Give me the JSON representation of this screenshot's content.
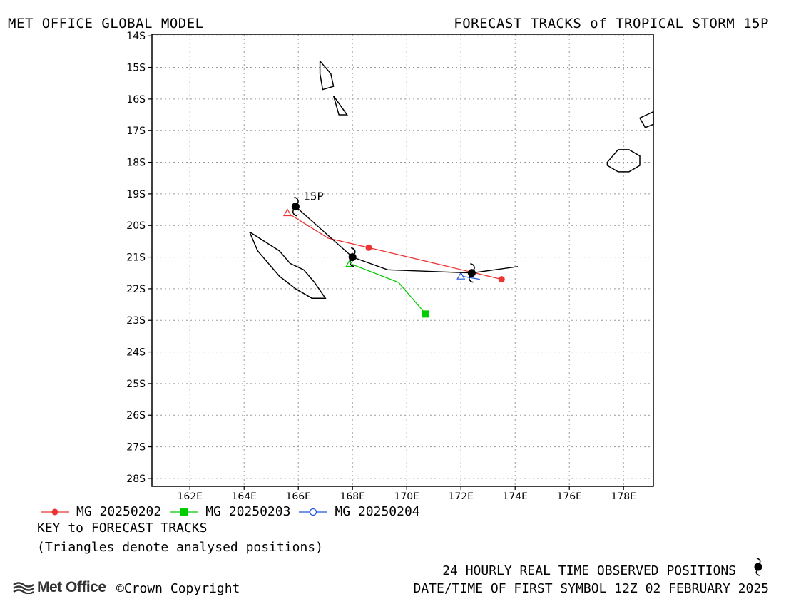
{
  "header": {
    "left": "MET OFFICE GLOBAL MODEL",
    "right": "FORECAST TRACKS of TROPICAL STORM 15P"
  },
  "chart_data": {
    "type": "line",
    "title": "FORECAST TRACKS of TROPICAL STORM 15P",
    "xlabel": "",
    "ylabel": "",
    "xlim": [
      160.6,
      179.1
    ],
    "ylim": [
      -28.25,
      -13.95
    ],
    "x_ticks": [
      162,
      164,
      166,
      168,
      170,
      172,
      174,
      176,
      178
    ],
    "x_tick_labels": [
      "162E",
      "164E",
      "166E",
      "168E",
      "170E",
      "172E",
      "174E",
      "176E",
      "178E"
    ],
    "y_ticks": [
      -14,
      -15,
      -16,
      -17,
      -18,
      -19,
      -20,
      -21,
      -22,
      -23,
      -24,
      -25,
      -26,
      -27,
      -28
    ],
    "y_tick_labels": [
      "14S",
      "15S",
      "16S",
      "17S",
      "18S",
      "19S",
      "20S",
      "21S",
      "22S",
      "23S",
      "24S",
      "25S",
      "26S",
      "27S",
      "28S"
    ],
    "grid": true,
    "storm_label": "15P",
    "observed_track": {
      "color": "#000000",
      "points": [
        [
          165.9,
          -19.4
        ],
        [
          168.0,
          -21.0
        ],
        [
          172.4,
          -21.5
        ]
      ],
      "line": [
        [
          165.9,
          -19.4
        ],
        [
          168.0,
          -21.0
        ],
        [
          169.3,
          -21.4
        ],
        [
          172.4,
          -21.5
        ],
        [
          174.1,
          -21.3
        ]
      ]
    },
    "series": [
      {
        "name": "MG 20250202",
        "color": "#ee3333",
        "marker": "circle-filled",
        "analysed": [
          165.6,
          -19.6
        ],
        "line": [
          [
            165.6,
            -19.6
          ],
          [
            167.1,
            -20.4
          ],
          [
            168.6,
            -20.7
          ],
          [
            173.5,
            -21.7
          ]
        ],
        "markers": [
          [
            168.6,
            -20.7
          ],
          [
            173.5,
            -21.7
          ]
        ]
      },
      {
        "name": "MG 20250203",
        "color": "#00cc00",
        "marker": "square-filled",
        "analysed": [
          167.9,
          -21.2
        ],
        "line": [
          [
            167.9,
            -21.2
          ],
          [
            169.7,
            -21.8
          ],
          [
            170.7,
            -22.8
          ]
        ],
        "markers": [
          [
            170.7,
            -22.8
          ]
        ]
      },
      {
        "name": "MG 20250204",
        "color": "#2255dd",
        "marker": "circle-open",
        "analysed": [
          172.0,
          -21.6
        ],
        "line": [
          [
            172.0,
            -21.6
          ],
          [
            172.7,
            -21.7
          ]
        ],
        "markers": []
      }
    ],
    "coastlines": [
      [
        [
          164.2,
          -20.2
        ],
        [
          164.5,
          -20.8
        ],
        [
          164.9,
          -21.2
        ],
        [
          165.3,
          -21.6
        ],
        [
          165.9,
          -22.0
        ],
        [
          166.5,
          -22.3
        ],
        [
          167.0,
          -22.3
        ],
        [
          166.6,
          -21.8
        ],
        [
          166.2,
          -21.4
        ],
        [
          165.7,
          -21.2
        ],
        [
          165.3,
          -20.8
        ],
        [
          164.2,
          -20.2
        ]
      ],
      [
        [
          166.8,
          -14.8
        ],
        [
          167.2,
          -15.2
        ],
        [
          167.3,
          -15.6
        ],
        [
          166.9,
          -15.7
        ],
        [
          166.8,
          -15.2
        ],
        [
          166.8,
          -14.8
        ]
      ],
      [
        [
          167.3,
          -15.9
        ],
        [
          167.8,
          -16.5
        ],
        [
          167.5,
          -16.5
        ],
        [
          167.3,
          -15.9
        ]
      ],
      [
        [
          177.4,
          -18.0
        ],
        [
          177.8,
          -17.6
        ],
        [
          178.2,
          -17.6
        ],
        [
          178.6,
          -17.8
        ],
        [
          178.6,
          -18.1
        ],
        [
          178.2,
          -18.3
        ],
        [
          177.8,
          -18.3
        ],
        [
          177.4,
          -18.1
        ],
        [
          177.4,
          -18.0
        ]
      ],
      [
        [
          178.6,
          -16.6
        ],
        [
          179.1,
          -16.4
        ],
        [
          179.1,
          -16.8
        ],
        [
          178.8,
          -16.9
        ],
        [
          178.6,
          -16.6
        ]
      ]
    ]
  },
  "legend": {
    "items": [
      {
        "label": "MG 20250202",
        "color": "#ee3333",
        "marker": "circle-filled"
      },
      {
        "label": "MG 20250203",
        "color": "#00cc00",
        "marker": "square-filled"
      },
      {
        "label": "MG 20250204",
        "color": "#2255dd",
        "marker": "circle-open"
      }
    ],
    "key_title": "KEY to FORECAST TRACKS",
    "key_note": "(Triangles denote analysed positions)"
  },
  "footer": {
    "observed_note": "24 HOURLY REAL TIME OBSERVED POSITIONS",
    "first_symbol": "DATE/TIME OF FIRST SYMBOL 12Z 02 FEBRUARY 2025",
    "logo_text": "Met Office",
    "copyright": "©Crown Copyright"
  }
}
